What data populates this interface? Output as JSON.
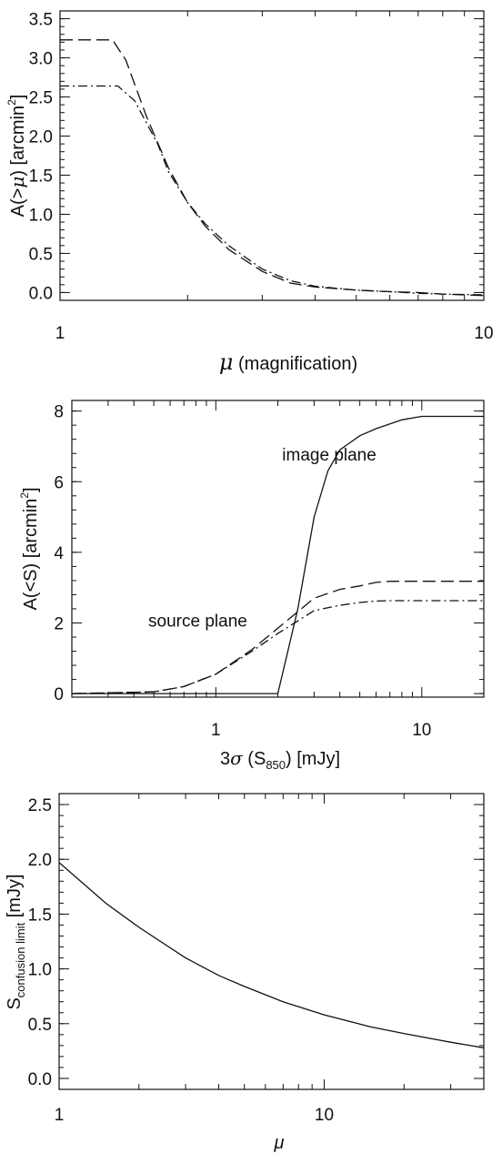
{
  "chart_data": [
    {
      "type": "line",
      "xscale": "log",
      "xlim": [
        1,
        10
      ],
      "ylim": [
        -0.1,
        3.6
      ],
      "xticks": [
        1,
        10
      ],
      "xtick_labels": [
        "1",
        "10"
      ],
      "yticks": [
        0.0,
        0.5,
        1.0,
        1.5,
        2.0,
        2.5,
        3.0,
        3.5
      ],
      "ytick_labels": [
        "0.0",
        "0.5",
        "1.0",
        "1.5",
        "2.0",
        "2.5",
        "3.0",
        "3.5"
      ],
      "xlabel": {
        "main": "μ",
        "suffix": " (magnification)"
      },
      "ylabel": {
        "pre": "A(>",
        "mu": "μ",
        "mid": ") [arcmin",
        "sup": "2",
        "post": "]"
      },
      "grid": false,
      "series": [
        {
          "style": "dashed",
          "color": "#111111",
          "x": [
            1.0,
            1.33,
            1.43,
            1.6,
            1.8,
            2.0,
            2.2,
            2.5,
            3.0,
            3.5,
            4.0,
            5.0,
            6.0,
            7.0,
            8.0,
            10.0
          ],
          "y": [
            3.23,
            3.23,
            2.97,
            2.25,
            1.6,
            1.15,
            0.85,
            0.55,
            0.27,
            0.12,
            0.07,
            0.03,
            0.01,
            0.0,
            -0.02,
            -0.04
          ]
        },
        {
          "style": "dashdot",
          "color": "#111111",
          "x": [
            1.0,
            1.37,
            1.5,
            1.7,
            1.8,
            2.0,
            2.2,
            2.5,
            3.0,
            3.5,
            4.0,
            5.0,
            6.0,
            7.0,
            8.0,
            10.0
          ],
          "y": [
            2.64,
            2.64,
            2.45,
            1.9,
            1.55,
            1.15,
            0.88,
            0.6,
            0.3,
            0.15,
            0.08,
            0.03,
            0.01,
            -0.01,
            -0.02,
            -0.03
          ]
        }
      ]
    },
    {
      "type": "line",
      "xscale": "log",
      "xlim": [
        0.2,
        20
      ],
      "ylim": [
        -0.1,
        8.3
      ],
      "xticks": [
        1,
        10
      ],
      "xtick_labels": [
        "1",
        "10"
      ],
      "yticks": [
        0,
        2,
        4,
        6,
        8
      ],
      "ytick_labels": [
        "0",
        "2",
        "4",
        "6",
        "8"
      ],
      "xlabel": {
        "pre": "3",
        "sigma": "σ",
        "mid": " (S",
        "sub": "850",
        "post": ") [mJy]"
      },
      "ylabel": {
        "pre": "A(<S) [arcmin",
        "sup": "2",
        "post": "]"
      },
      "grid": false,
      "annotations": [
        {
          "text": "image plane",
          "x": 2.1,
          "y": 6.6
        },
        {
          "text": "source plane",
          "x": 0.47,
          "y": 1.9
        }
      ],
      "series": [
        {
          "style": "solid",
          "color": "#111111",
          "x": [
            0.2,
            2.0,
            2.5,
            3.0,
            3.5,
            4.0,
            5.0,
            6.0,
            8.0,
            10.0,
            20.0
          ],
          "y": [
            0.0,
            0.0,
            2.4,
            5.0,
            6.3,
            6.9,
            7.3,
            7.5,
            7.75,
            7.85,
            7.85
          ]
        },
        {
          "style": "dashed",
          "color": "#111111",
          "x": [
            0.2,
            0.5,
            0.7,
            1.0,
            1.5,
            2.0,
            3.0,
            4.0,
            5.0,
            6.0,
            7.0,
            10.0,
            20.0
          ],
          "y": [
            0.0,
            0.05,
            0.2,
            0.55,
            1.25,
            1.85,
            2.7,
            2.95,
            3.05,
            3.15,
            3.18,
            3.18,
            3.18
          ]
        },
        {
          "style": "dashdot",
          "color": "#111111",
          "x": [
            0.2,
            0.5,
            0.7,
            1.0,
            1.5,
            2.0,
            3.0,
            4.0,
            5.0,
            6.0,
            7.0,
            10.0,
            20.0
          ],
          "y": [
            0.0,
            0.05,
            0.2,
            0.55,
            1.2,
            1.7,
            2.35,
            2.5,
            2.58,
            2.62,
            2.63,
            2.63,
            2.63
          ]
        }
      ]
    },
    {
      "type": "line",
      "xscale": "log",
      "xlim": [
        1,
        40
      ],
      "ylim": [
        -0.1,
        2.6
      ],
      "xticks": [
        1,
        10
      ],
      "xtick_labels": [
        "1",
        "10"
      ],
      "yticks": [
        0.0,
        0.5,
        1.0,
        1.5,
        2.0,
        2.5
      ],
      "ytick_labels": [
        "0.0",
        "0.5",
        "1.0",
        "1.5",
        "2.0",
        "2.5"
      ],
      "xlabel": {
        "main": "μ"
      },
      "ylabel": {
        "pre": "S",
        "sub": "confusion limit",
        "post": " [mJy]"
      },
      "grid": false,
      "series": [
        {
          "style": "solid",
          "color": "#111111",
          "x": [
            1,
            1.5,
            2,
            3,
            4,
            5,
            7,
            10,
            15,
            20,
            30,
            40
          ],
          "y": [
            1.97,
            1.6,
            1.38,
            1.1,
            0.94,
            0.84,
            0.7,
            0.58,
            0.47,
            0.41,
            0.33,
            0.28
          ]
        }
      ]
    }
  ]
}
